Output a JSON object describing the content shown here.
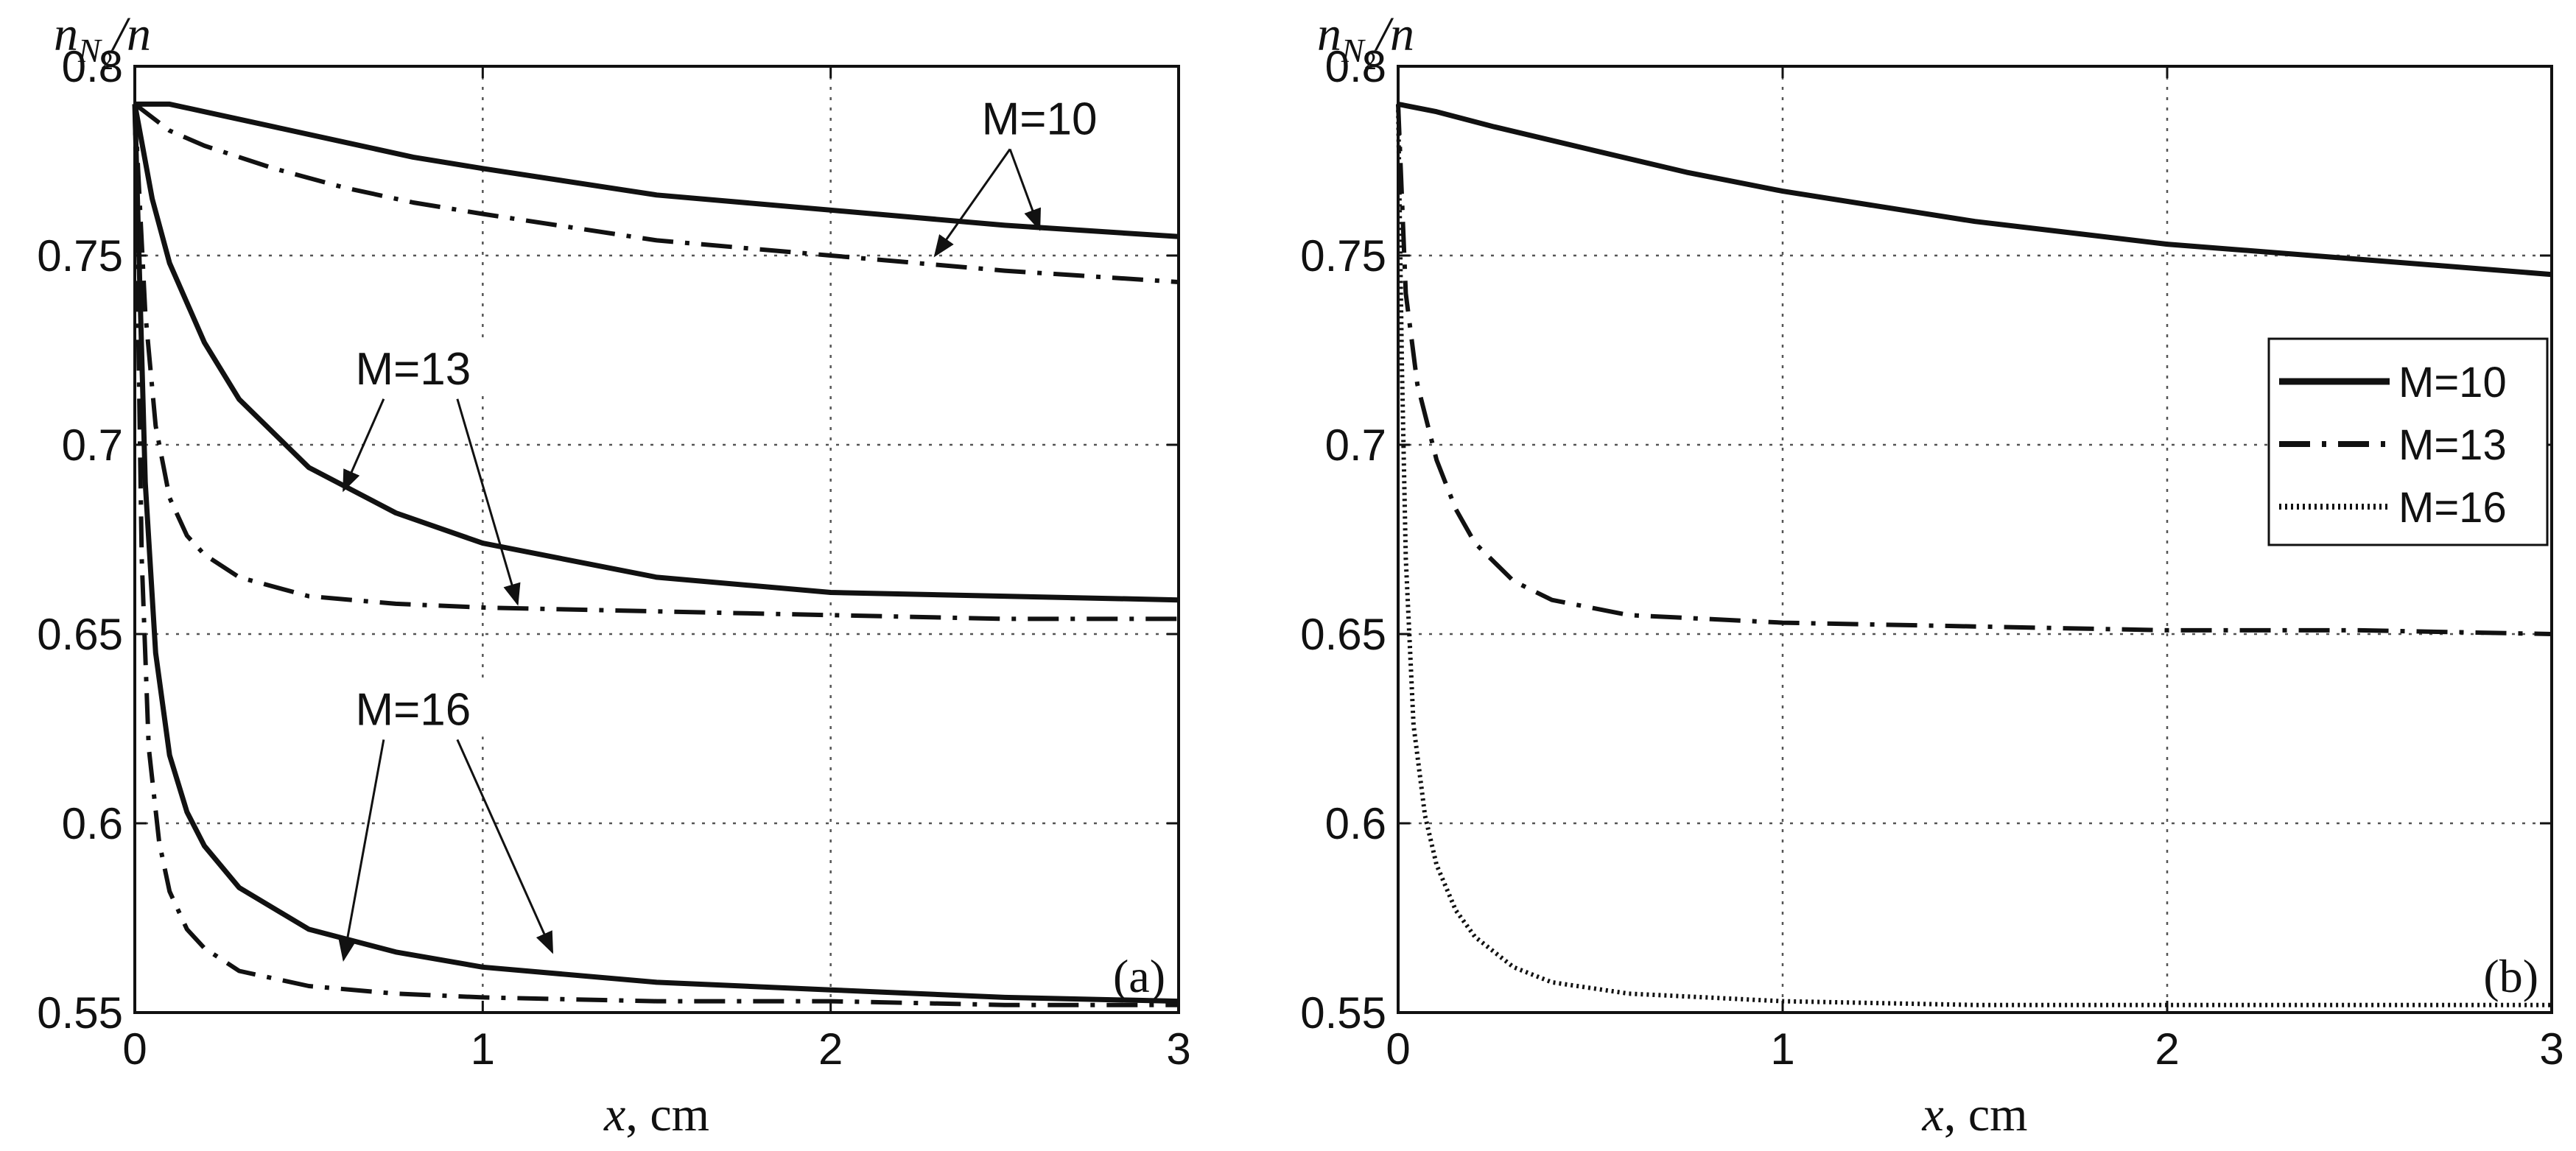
{
  "chart_data": [
    {
      "type": "line",
      "panel_label": "(a)",
      "ylabel": "n_N2/n",
      "ylabel_parts": {
        "n": "n",
        "sub": "N",
        "subsub": "2",
        "rest": "/n"
      },
      "xlabel_var": "x",
      "xlabel_unit": ", cm",
      "xlim": [
        0,
        3
      ],
      "ylim": [
        0.55,
        0.8
      ],
      "xticks": [
        0,
        1,
        2,
        3
      ],
      "xtick_labels": [
        "0",
        "1",
        "2",
        "3"
      ],
      "yticks": [
        0.55,
        0.6,
        0.65,
        0.7,
        0.75,
        0.8
      ],
      "ytick_labels": [
        "0.55",
        "0.6",
        "0.65",
        "0.7",
        "0.75",
        "0.8"
      ],
      "grid": true,
      "series": [
        {
          "name": "M=10 solid",
          "style": "solid",
          "x": [
            0,
            0.1,
            0.2,
            0.4,
            0.6,
            0.8,
            1.0,
            1.5,
            2.0,
            2.5,
            3.0
          ],
          "values": [
            0.79,
            0.79,
            0.788,
            0.784,
            0.78,
            0.776,
            0.773,
            0.766,
            0.762,
            0.758,
            0.755
          ]
        },
        {
          "name": "M=10 dash-dot",
          "style": "dashdot",
          "x": [
            0,
            0.1,
            0.2,
            0.4,
            0.6,
            0.8,
            1.0,
            1.5,
            2.0,
            2.5,
            3.0
          ],
          "values": [
            0.79,
            0.783,
            0.779,
            0.773,
            0.768,
            0.764,
            0.761,
            0.754,
            0.75,
            0.746,
            0.743
          ]
        },
        {
          "name": "M=13 solid",
          "style": "solid",
          "x": [
            0,
            0.05,
            0.1,
            0.2,
            0.3,
            0.5,
            0.75,
            1.0,
            1.5,
            2.0,
            2.5,
            3.0
          ],
          "values": [
            0.79,
            0.765,
            0.748,
            0.727,
            0.712,
            0.694,
            0.682,
            0.674,
            0.665,
            0.661,
            0.66,
            0.659
          ]
        },
        {
          "name": "M=13 dash-dot",
          "style": "dashdot",
          "x": [
            0,
            0.03,
            0.06,
            0.1,
            0.15,
            0.2,
            0.3,
            0.5,
            0.75,
            1.0,
            1.5,
            2.0,
            2.5,
            3.0
          ],
          "values": [
            0.79,
            0.735,
            0.705,
            0.686,
            0.676,
            0.671,
            0.665,
            0.66,
            0.658,
            0.657,
            0.656,
            0.655,
            0.654,
            0.654
          ]
        },
        {
          "name": "M=16 solid",
          "style": "solid",
          "x": [
            0,
            0.03,
            0.06,
            0.1,
            0.15,
            0.2,
            0.3,
            0.5,
            0.75,
            1.0,
            1.5,
            2.0,
            2.5,
            3.0
          ],
          "values": [
            0.79,
            0.69,
            0.645,
            0.618,
            0.603,
            0.594,
            0.583,
            0.572,
            0.566,
            0.562,
            0.558,
            0.556,
            0.554,
            0.553
          ]
        },
        {
          "name": "M=16 dash-dot",
          "style": "dashdot",
          "x": [
            0,
            0.02,
            0.04,
            0.07,
            0.1,
            0.15,
            0.2,
            0.3,
            0.5,
            0.75,
            1.0,
            1.5,
            2.0,
            2.5,
            3.0
          ],
          "values": [
            0.79,
            0.67,
            0.62,
            0.595,
            0.582,
            0.572,
            0.567,
            0.561,
            0.557,
            0.555,
            0.554,
            0.553,
            0.553,
            0.552,
            0.552
          ]
        }
      ],
      "annotations": [
        {
          "text": "M=10",
          "x": 2.6,
          "y": 0.782,
          "arrows_to": [
            [
              2.3,
              0.75
            ],
            [
              2.6,
              0.757
            ]
          ]
        },
        {
          "text": "M=13",
          "x": 0.8,
          "y": 0.716,
          "arrows_to": [
            [
              0.6,
              0.688
            ],
            [
              1.1,
              0.658
            ]
          ]
        },
        {
          "text": "M=16",
          "x": 0.8,
          "y": 0.626,
          "arrows_to": [
            [
              0.6,
              0.564
            ],
            [
              1.2,
              0.566
            ]
          ]
        }
      ]
    },
    {
      "type": "line",
      "panel_label": "(b)",
      "ylabel": "n_N2/n",
      "ylabel_parts": {
        "n": "n",
        "sub": "N",
        "subsub": "2",
        "rest": "/n"
      },
      "xlabel_var": "x",
      "xlabel_unit": ", cm",
      "xlim": [
        0,
        3
      ],
      "ylim": [
        0.55,
        0.8
      ],
      "xticks": [
        0,
        1,
        2,
        3
      ],
      "xtick_labels": [
        "0",
        "1",
        "2",
        "3"
      ],
      "yticks": [
        0.55,
        0.6,
        0.65,
        0.7,
        0.75,
        0.8
      ],
      "ytick_labels": [
        "0.55",
        "0.6",
        "0.65",
        "0.7",
        "0.75",
        "0.8"
      ],
      "grid": true,
      "legend_position": "right, upper-middle",
      "series": [
        {
          "name": "M=10",
          "style": "solid",
          "x": [
            0,
            0.1,
            0.25,
            0.5,
            0.75,
            1.0,
            1.5,
            2.0,
            2.5,
            3.0
          ],
          "values": [
            0.79,
            0.788,
            0.784,
            0.778,
            0.772,
            0.767,
            0.759,
            0.753,
            0.749,
            0.745
          ]
        },
        {
          "name": "M=13",
          "style": "dashdot",
          "x": [
            0,
            0.02,
            0.05,
            0.1,
            0.15,
            0.2,
            0.3,
            0.4,
            0.6,
            0.8,
            1.0,
            1.5,
            2.0,
            2.5,
            3.0
          ],
          "values": [
            0.79,
            0.74,
            0.716,
            0.696,
            0.683,
            0.674,
            0.664,
            0.659,
            0.655,
            0.654,
            0.653,
            0.652,
            0.651,
            0.651,
            0.65
          ]
        },
        {
          "name": "M=16",
          "style": "dotted",
          "x": [
            0,
            0.01,
            0.02,
            0.04,
            0.07,
            0.1,
            0.15,
            0.2,
            0.3,
            0.4,
            0.6,
            0.8,
            1.0,
            1.5,
            2.0,
            2.5,
            3.0
          ],
          "values": [
            0.79,
            0.72,
            0.67,
            0.626,
            0.602,
            0.589,
            0.577,
            0.57,
            0.562,
            0.558,
            0.555,
            0.554,
            0.553,
            0.552,
            0.552,
            0.552,
            0.552
          ]
        }
      ]
    }
  ]
}
